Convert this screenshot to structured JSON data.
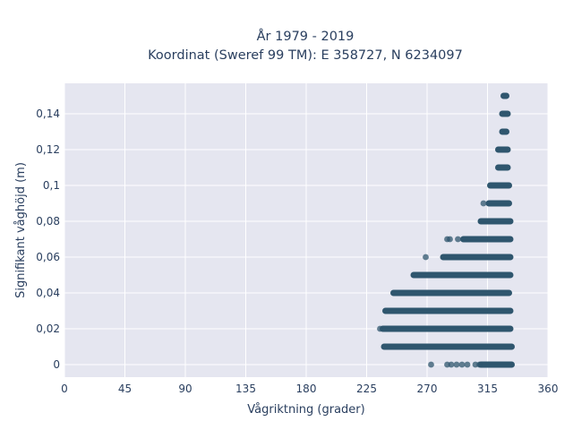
{
  "chart_data": {
    "type": "scatter",
    "title_lines": [
      "År 1979 - 2019",
      "Koordinat (Sweref 99 TM): E 358727, N 6234097"
    ],
    "xlabel": "Vågriktning (grader)",
    "ylabel": "Signifikant våghöjd (m)",
    "xlim": [
      0,
      360
    ],
    "ylim": [
      -0.007,
      0.157
    ],
    "x_ticks": [
      0,
      45,
      90,
      135,
      180,
      225,
      270,
      315,
      360
    ],
    "x_tick_labels": [
      "0",
      "45",
      "90",
      "135",
      "180",
      "225",
      "270",
      "315",
      "360"
    ],
    "y_ticks": [
      0,
      0.02,
      0.04,
      0.06,
      0.08,
      0.1,
      0.12,
      0.14
    ],
    "y_tick_labels": [
      "0",
      "0,02",
      "0,04",
      "0,06",
      "0,08",
      "0,1",
      "0,12",
      "0,14"
    ],
    "grid": true,
    "plot_background": "#e5e6f0",
    "marker_color": "#2f566e",
    "bands": [
      {
        "y": 0.15,
        "x_from": 327,
        "x_to": 329
      },
      {
        "y": 0.14,
        "x_from": 326,
        "x_to": 330
      },
      {
        "y": 0.13,
        "x_from": 326,
        "x_to": 329
      },
      {
        "y": 0.12,
        "x_from": 323,
        "x_to": 330
      },
      {
        "y": 0.11,
        "x_from": 323,
        "x_to": 330
      },
      {
        "y": 0.1,
        "x_from": 317,
        "x_to": 331
      },
      {
        "y": 0.09,
        "x_from": 316,
        "x_to": 331
      },
      {
        "y": 0.08,
        "x_from": 310,
        "x_to": 332
      },
      {
        "y": 0.07,
        "x_from": 297,
        "x_to": 332
      },
      {
        "y": 0.06,
        "x_from": 282,
        "x_to": 332
      },
      {
        "y": 0.05,
        "x_from": 260,
        "x_to": 332
      },
      {
        "y": 0.04,
        "x_from": 245,
        "x_to": 331
      },
      {
        "y": 0.03,
        "x_from": 239,
        "x_to": 332
      },
      {
        "y": 0.02,
        "x_from": 237,
        "x_to": 332
      },
      {
        "y": 0.01,
        "x_from": 238,
        "x_to": 333
      },
      {
        "y": 0.0,
        "x_from": 310,
        "x_to": 333
      }
    ],
    "points": [
      {
        "x": 235,
        "y": 0.02
      },
      {
        "x": 269,
        "y": 0.06
      },
      {
        "x": 285,
        "y": 0.07
      },
      {
        "x": 287,
        "y": 0.07
      },
      {
        "x": 293,
        "y": 0.07
      },
      {
        "x": 312,
        "y": 0.09
      },
      {
        "x": 273,
        "y": 0.0
      },
      {
        "x": 285,
        "y": 0.0
      },
      {
        "x": 288,
        "y": 0.0
      },
      {
        "x": 292,
        "y": 0.0
      },
      {
        "x": 296,
        "y": 0.0
      },
      {
        "x": 300,
        "y": 0.0
      },
      {
        "x": 306,
        "y": 0.0
      },
      {
        "x": 309,
        "y": 0.0
      }
    ]
  }
}
